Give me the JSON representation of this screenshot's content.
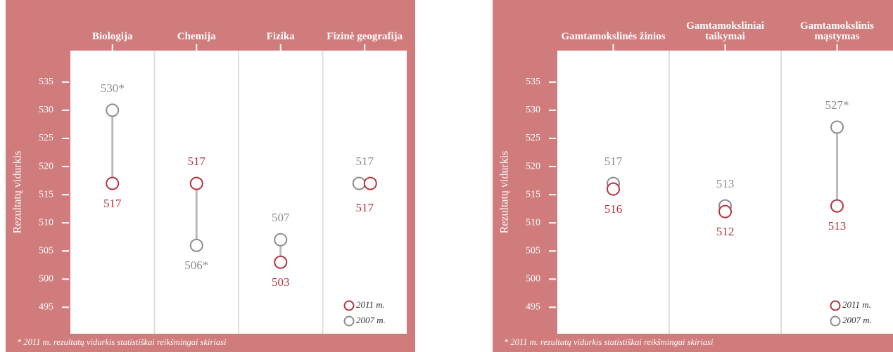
{
  "chart_data": [
    {
      "type": "dot",
      "y_label": "Rezultatų vidurkis",
      "categories": [
        "Biologija",
        "Chemija",
        "Fizika",
        "Fizinė geografija"
      ],
      "series": [
        {
          "name": "2011 m.",
          "color": "#b5333d",
          "values": [
            517,
            517,
            503,
            517
          ]
        },
        {
          "name": "2007 m.",
          "color": "#8c8c8c",
          "values": [
            530,
            506,
            507,
            517
          ],
          "value_labels": [
            "530*",
            "506*",
            "507",
            "517"
          ]
        }
      ],
      "ylim": [
        490.3,
        540.6
      ],
      "yticks": [
        495,
        500,
        505,
        510,
        515,
        520,
        525,
        530,
        535
      ],
      "footnote": "* 2011 m. rezultatų vidurkis statistiškai reikšmingai skiriasi"
    },
    {
      "type": "dot",
      "y_label": "Rezultatų vidurkis",
      "categories": [
        "Gamtamokslinės žinios",
        "Gamtamoksliniai taikymai",
        "Gamtamokslinis mąstymas"
      ],
      "series": [
        {
          "name": "2011 m.",
          "color": "#b5333d",
          "values": [
            516,
            512,
            513
          ]
        },
        {
          "name": "2007 m.",
          "color": "#8c8c8c",
          "values": [
            517,
            513,
            527
          ],
          "value_labels": [
            "517",
            "513",
            "527*"
          ]
        }
      ],
      "ylim": [
        490.3,
        540.6
      ],
      "yticks": [
        495,
        500,
        505,
        510,
        515,
        520,
        525,
        530,
        535
      ],
      "footnote": "* 2011 m. rezultatų vidurkis statistiškai reikšmingai skiriasi"
    }
  ]
}
